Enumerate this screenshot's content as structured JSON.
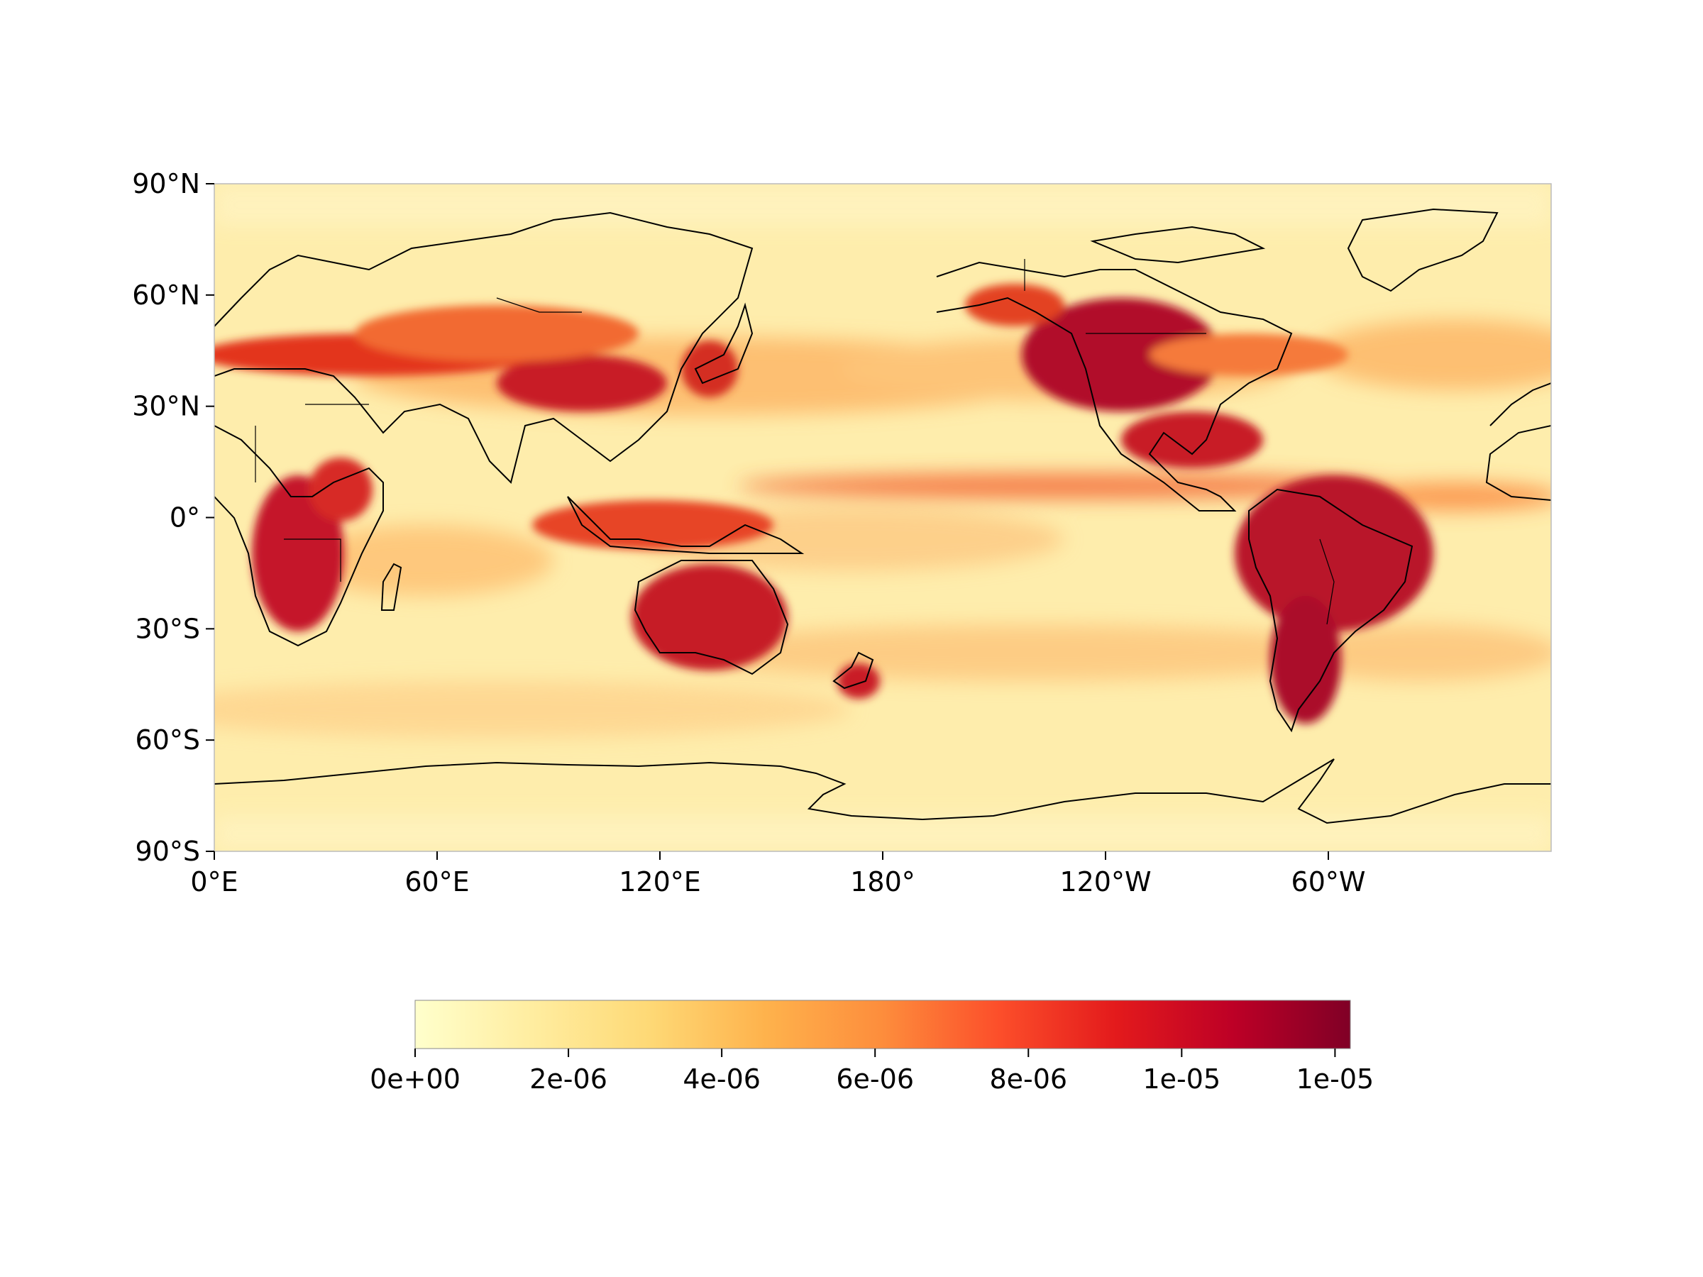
{
  "map": {
    "projection": "PlateCarree",
    "central_longitude": 180,
    "coastlines": true,
    "borders": true,
    "colormap": "YlOrRd",
    "lat_ticks": [
      {
        "value": 90,
        "label": "90°N"
      },
      {
        "value": 60,
        "label": "60°N"
      },
      {
        "value": 30,
        "label": "30°N"
      },
      {
        "value": 0,
        "label": "0°"
      },
      {
        "value": -30,
        "label": "30°S"
      },
      {
        "value": -60,
        "label": "60°S"
      },
      {
        "value": -90,
        "label": "90°S"
      }
    ],
    "lon_ticks": [
      {
        "value": 0,
        "label": "0°E"
      },
      {
        "value": 60,
        "label": "60°E"
      },
      {
        "value": 120,
        "label": "120°E"
      },
      {
        "value": 180,
        "label": "180°"
      },
      {
        "value": 240,
        "label": "120°W"
      },
      {
        "value": 300,
        "label": "60°W"
      }
    ],
    "lon_range": [
      0,
      360
    ],
    "lat_range": [
      -90,
      90
    ]
  },
  "colorbar": {
    "orientation": "horizontal",
    "range": [
      0,
      1.22e-05
    ],
    "colors": [
      "#ffffcc",
      "#ffeda0",
      "#fed976",
      "#feb24c",
      "#fd8d3c",
      "#fc4e2a",
      "#e31a1c",
      "#bd0026",
      "#800026"
    ],
    "ticks": [
      {
        "value": 0,
        "label": "0e+00"
      },
      {
        "value": 2e-06,
        "label": "2e-06"
      },
      {
        "value": 4e-06,
        "label": "4e-06"
      },
      {
        "value": 6e-06,
        "label": "6e-06"
      },
      {
        "value": 8e-06,
        "label": "8e-06"
      },
      {
        "value": 1e-05,
        "label": "1e-05"
      },
      {
        "value": 1.2e-05,
        "label": "1e-05"
      }
    ]
  }
}
